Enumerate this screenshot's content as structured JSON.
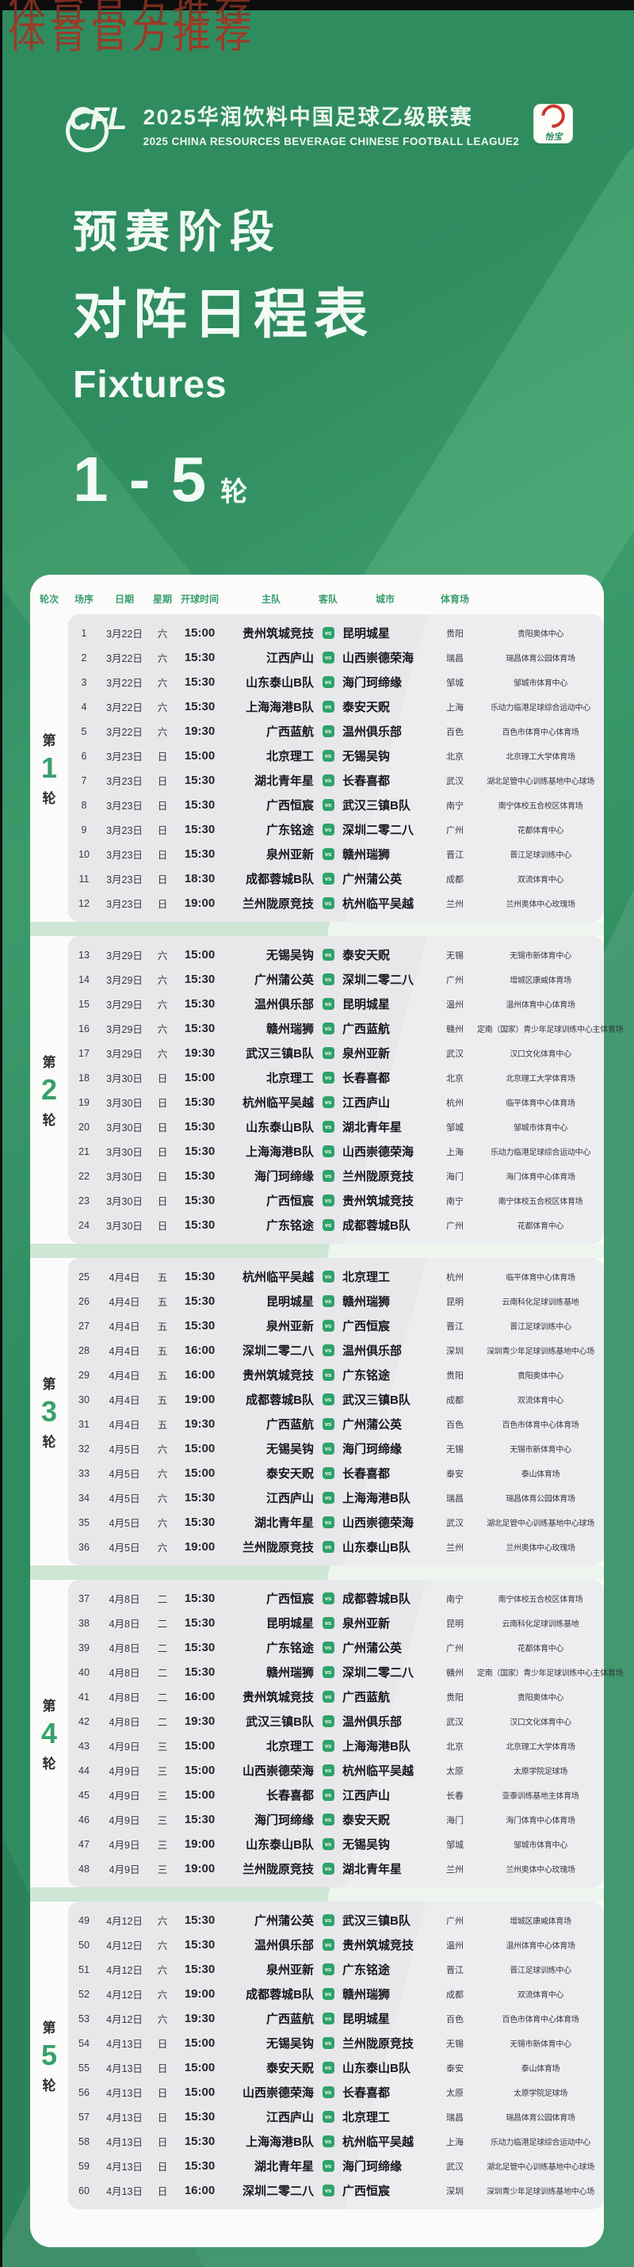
{
  "watermark": "体育官方推荐",
  "header": {
    "logo": "CFL",
    "title_cn": "2025华润饮料中国足球乙级联赛",
    "title_en": "2025 CHINA RESOURCES BEVERAGE CHINESE FOOTBALL LEAGUE2",
    "sponsor": "怡宝"
  },
  "hero": {
    "line1": "预赛阶段",
    "line2": "对阵日程表",
    "line3": "Fixtures",
    "range": "1 - 5",
    "range_unit": "轮"
  },
  "colors": {
    "background_green": "#2e8c5f",
    "card_white": "#fafbfa",
    "section_gray": "#e8e8eb",
    "accent_green": "#38a06c",
    "vs_badge_green": "#2fa26b",
    "watermark_red": "#9c3b28",
    "topbar_black": "#0d0d0d"
  },
  "table": {
    "columns": [
      "轮次",
      "场序",
      "日期",
      "星期",
      "开球时间",
      "主队",
      "客队",
      "城市",
      "体育场"
    ],
    "vs_label": "VS",
    "rounds": [
      {
        "label_prefix": "第",
        "number": "1",
        "label_suffix": "轮",
        "matches": [
          {
            "no": "1",
            "date": "3月22日",
            "week": "六",
            "time": "15:00",
            "home": "贵州筑城竞技",
            "away": "昆明城星",
            "city": "贵阳",
            "stadium": "贵阳奥体中心"
          },
          {
            "no": "2",
            "date": "3月22日",
            "week": "六",
            "time": "15:30",
            "home": "江西庐山",
            "away": "山西崇德荣海",
            "city": "瑞昌",
            "stadium": "瑞昌体育公园体育场"
          },
          {
            "no": "3",
            "date": "3月22日",
            "week": "六",
            "time": "15:30",
            "home": "山东泰山B队",
            "away": "海门珂缔缘",
            "city": "邹城",
            "stadium": "邹城市体育中心"
          },
          {
            "no": "4",
            "date": "3月22日",
            "week": "六",
            "time": "15:30",
            "home": "上海海港B队",
            "away": "泰安天贶",
            "city": "上海",
            "stadium": "乐动力临港足球综合运动中心"
          },
          {
            "no": "5",
            "date": "3月22日",
            "week": "六",
            "time": "19:30",
            "home": "广西蓝航",
            "away": "温州俱乐部",
            "city": "百色",
            "stadium": "百色市体育中心体育场"
          },
          {
            "no": "6",
            "date": "3月23日",
            "week": "日",
            "time": "15:00",
            "home": "北京理工",
            "away": "无锡吴钩",
            "city": "北京",
            "stadium": "北京理工大学体育场"
          },
          {
            "no": "7",
            "date": "3月23日",
            "week": "日",
            "time": "15:30",
            "home": "湖北青年星",
            "away": "长春喜都",
            "city": "武汉",
            "stadium": "湖北足管中心训练基地中心球场"
          },
          {
            "no": "8",
            "date": "3月23日",
            "week": "日",
            "time": "15:30",
            "home": "广西恒宸",
            "away": "武汉三镇B队",
            "city": "南宁",
            "stadium": "南宁体校五合校区体育场"
          },
          {
            "no": "9",
            "date": "3月23日",
            "week": "日",
            "time": "15:30",
            "home": "广东铭途",
            "away": "深圳二零二八",
            "city": "广州",
            "stadium": "花都体育中心"
          },
          {
            "no": "10",
            "date": "3月23日",
            "week": "日",
            "time": "15:30",
            "home": "泉州亚新",
            "away": "赣州瑞狮",
            "city": "晋江",
            "stadium": "晋江足球训练中心"
          },
          {
            "no": "11",
            "date": "3月23日",
            "week": "日",
            "time": "18:30",
            "home": "成都蓉城B队",
            "away": "广州蒲公英",
            "city": "成都",
            "stadium": "双流体育中心"
          },
          {
            "no": "12",
            "date": "3月23日",
            "week": "日",
            "time": "19:00",
            "home": "兰州陇原竞技",
            "away": "杭州临平吴越",
            "city": "兰州",
            "stadium": "兰州奥体中心玫瑰场"
          }
        ]
      },
      {
        "label_prefix": "第",
        "number": "2",
        "label_suffix": "轮",
        "matches": [
          {
            "no": "13",
            "date": "3月29日",
            "week": "六",
            "time": "15:00",
            "home": "无锡吴钩",
            "away": "泰安天贶",
            "city": "无锡",
            "stadium": "无锡市新体育中心"
          },
          {
            "no": "14",
            "date": "3月29日",
            "week": "六",
            "time": "15:30",
            "home": "广州蒲公英",
            "away": "深圳二零二八",
            "city": "广州",
            "stadium": "增城区康威体育场"
          },
          {
            "no": "15",
            "date": "3月29日",
            "week": "六",
            "time": "15:30",
            "home": "温州俱乐部",
            "away": "昆明城星",
            "city": "温州",
            "stadium": "温州体育中心体育场"
          },
          {
            "no": "16",
            "date": "3月29日",
            "week": "六",
            "time": "15:30",
            "home": "赣州瑞狮",
            "away": "广西蓝航",
            "city": "赣州",
            "stadium": "定南（国家）青少年足球训练中心主体育场"
          },
          {
            "no": "17",
            "date": "3月29日",
            "week": "六",
            "time": "19:30",
            "home": "武汉三镇B队",
            "away": "泉州亚新",
            "city": "武汉",
            "stadium": "汉口文化体育中心"
          },
          {
            "no": "18",
            "date": "3月30日",
            "week": "日",
            "time": "15:00",
            "home": "北京理工",
            "away": "长春喜都",
            "city": "北京",
            "stadium": "北京理工大学体育场"
          },
          {
            "no": "19",
            "date": "3月30日",
            "week": "日",
            "time": "15:30",
            "home": "杭州临平吴越",
            "away": "江西庐山",
            "city": "杭州",
            "stadium": "临平体育中心体育场"
          },
          {
            "no": "20",
            "date": "3月30日",
            "week": "日",
            "time": "15:30",
            "home": "山东泰山B队",
            "away": "湖北青年星",
            "city": "邹城",
            "stadium": "邹城市体育中心"
          },
          {
            "no": "21",
            "date": "3月30日",
            "week": "日",
            "time": "15:30",
            "home": "上海海港B队",
            "away": "山西崇德荣海",
            "city": "上海",
            "stadium": "乐动力临港足球综合运动中心"
          },
          {
            "no": "22",
            "date": "3月30日",
            "week": "日",
            "time": "15:30",
            "home": "海门珂缔缘",
            "away": "兰州陇原竞技",
            "city": "海门",
            "stadium": "海门体育中心体育场"
          },
          {
            "no": "23",
            "date": "3月30日",
            "week": "日",
            "time": "15:30",
            "home": "广西恒宸",
            "away": "贵州筑城竞技",
            "city": "南宁",
            "stadium": "南宁体校五合校区体育场"
          },
          {
            "no": "24",
            "date": "3月30日",
            "week": "日",
            "time": "15:30",
            "home": "广东铭途",
            "away": "成都蓉城B队",
            "city": "广州",
            "stadium": "花都体育中心"
          }
        ]
      },
      {
        "label_prefix": "第",
        "number": "3",
        "label_suffix": "轮",
        "matches": [
          {
            "no": "25",
            "date": "4月4日",
            "week": "五",
            "time": "15:30",
            "home": "杭州临平吴越",
            "away": "北京理工",
            "city": "杭州",
            "stadium": "临平体育中心体育场"
          },
          {
            "no": "26",
            "date": "4月4日",
            "week": "五",
            "time": "15:30",
            "home": "昆明城星",
            "away": "赣州瑞狮",
            "city": "昆明",
            "stadium": "云南科化足球训练基地"
          },
          {
            "no": "27",
            "date": "4月4日",
            "week": "五",
            "time": "15:30",
            "home": "泉州亚新",
            "away": "广西恒宸",
            "city": "晋江",
            "stadium": "晋江足球训练中心"
          },
          {
            "no": "28",
            "date": "4月4日",
            "week": "五",
            "time": "16:00",
            "home": "深圳二零二八",
            "away": "温州俱乐部",
            "city": "深圳",
            "stadium": "深圳青少年足球训练基地中心场"
          },
          {
            "no": "29",
            "date": "4月4日",
            "week": "五",
            "time": "16:00",
            "home": "贵州筑城竞技",
            "away": "广东铭途",
            "city": "贵阳",
            "stadium": "贵阳奥体中心"
          },
          {
            "no": "30",
            "date": "4月4日",
            "week": "五",
            "time": "19:00",
            "home": "成都蓉城B队",
            "away": "武汉三镇B队",
            "city": "成都",
            "stadium": "双流体育中心"
          },
          {
            "no": "31",
            "date": "4月4日",
            "week": "五",
            "time": "19:30",
            "home": "广西蓝航",
            "away": "广州蒲公英",
            "city": "百色",
            "stadium": "百色市体育中心体育场"
          },
          {
            "no": "32",
            "date": "4月5日",
            "week": "六",
            "time": "15:00",
            "home": "无锡吴钩",
            "away": "海门珂缔缘",
            "city": "无锡",
            "stadium": "无锡市新体育中心"
          },
          {
            "no": "33",
            "date": "4月5日",
            "week": "六",
            "time": "15:00",
            "home": "泰安天贶",
            "away": "长春喜都",
            "city": "泰安",
            "stadium": "泰山体育场"
          },
          {
            "no": "34",
            "date": "4月5日",
            "week": "六",
            "time": "15:30",
            "home": "江西庐山",
            "away": "上海海港B队",
            "city": "瑞昌",
            "stadium": "瑞昌体育公园体育场"
          },
          {
            "no": "35",
            "date": "4月5日",
            "week": "六",
            "time": "15:30",
            "home": "湖北青年星",
            "away": "山西崇德荣海",
            "city": "武汉",
            "stadium": "湖北足管中心训练基地中心球场"
          },
          {
            "no": "36",
            "date": "4月5日",
            "week": "六",
            "time": "19:00",
            "home": "兰州陇原竞技",
            "away": "山东泰山B队",
            "city": "兰州",
            "stadium": "兰州奥体中心玫瑰场"
          }
        ]
      },
      {
        "label_prefix": "第",
        "number": "4",
        "label_suffix": "轮",
        "matches": [
          {
            "no": "37",
            "date": "4月8日",
            "week": "二",
            "time": "15:30",
            "home": "广西恒宸",
            "away": "成都蓉城B队",
            "city": "南宁",
            "stadium": "南宁体校五合校区体育场"
          },
          {
            "no": "38",
            "date": "4月8日",
            "week": "二",
            "time": "15:30",
            "home": "昆明城星",
            "away": "泉州亚新",
            "city": "昆明",
            "stadium": "云南科化足球训练基地"
          },
          {
            "no": "39",
            "date": "4月8日",
            "week": "二",
            "time": "15:30",
            "home": "广东铭途",
            "away": "广州蒲公英",
            "city": "广州",
            "stadium": "花都体育中心"
          },
          {
            "no": "40",
            "date": "4月8日",
            "week": "二",
            "time": "15:30",
            "home": "赣州瑞狮",
            "away": "深圳二零二八",
            "city": "赣州",
            "stadium": "定南（国家）青少年足球训练中心主体育场"
          },
          {
            "no": "41",
            "date": "4月8日",
            "week": "二",
            "time": "16:00",
            "home": "贵州筑城竞技",
            "away": "广西蓝航",
            "city": "贵阳",
            "stadium": "贵阳奥体中心"
          },
          {
            "no": "42",
            "date": "4月8日",
            "week": "二",
            "time": "19:30",
            "home": "武汉三镇B队",
            "away": "温州俱乐部",
            "city": "武汉",
            "stadium": "汉口文化体育中心"
          },
          {
            "no": "43",
            "date": "4月9日",
            "week": "三",
            "time": "15:00",
            "home": "北京理工",
            "away": "上海海港B队",
            "city": "北京",
            "stadium": "北京理工大学体育场"
          },
          {
            "no": "44",
            "date": "4月9日",
            "week": "三",
            "time": "15:00",
            "home": "山西崇德荣海",
            "away": "杭州临平吴越",
            "city": "太原",
            "stadium": "太原学院足球场"
          },
          {
            "no": "45",
            "date": "4月9日",
            "week": "三",
            "time": "15:00",
            "home": "长春喜都",
            "away": "江西庐山",
            "city": "长春",
            "stadium": "亚泰训练基地主体育场"
          },
          {
            "no": "46",
            "date": "4月9日",
            "week": "三",
            "time": "15:30",
            "home": "海门珂缔缘",
            "away": "泰安天贶",
            "city": "海门",
            "stadium": "海门体育中心体育场"
          },
          {
            "no": "47",
            "date": "4月9日",
            "week": "三",
            "time": "19:00",
            "home": "山东泰山B队",
            "away": "无锡吴钩",
            "city": "邹城",
            "stadium": "邹城市体育中心"
          },
          {
            "no": "48",
            "date": "4月9日",
            "week": "三",
            "time": "19:00",
            "home": "兰州陇原竞技",
            "away": "湖北青年星",
            "city": "兰州",
            "stadium": "兰州奥体中心玫瑰场"
          }
        ]
      },
      {
        "label_prefix": "第",
        "number": "5",
        "label_suffix": "轮",
        "matches": [
          {
            "no": "49",
            "date": "4月12日",
            "week": "六",
            "time": "15:30",
            "home": "广州蒲公英",
            "away": "武汉三镇B队",
            "city": "广州",
            "stadium": "增城区康威体育场"
          },
          {
            "no": "50",
            "date": "4月12日",
            "week": "六",
            "time": "15:30",
            "home": "温州俱乐部",
            "away": "贵州筑城竞技",
            "city": "温州",
            "stadium": "温州体育中心体育场"
          },
          {
            "no": "51",
            "date": "4月12日",
            "week": "六",
            "time": "15:30",
            "home": "泉州亚新",
            "away": "广东铭途",
            "city": "晋江",
            "stadium": "晋江足球训练中心"
          },
          {
            "no": "52",
            "date": "4月12日",
            "week": "六",
            "time": "19:00",
            "home": "成都蓉城B队",
            "away": "赣州瑞狮",
            "city": "成都",
            "stadium": "双流体育中心"
          },
          {
            "no": "53",
            "date": "4月12日",
            "week": "六",
            "time": "19:30",
            "home": "广西蓝航",
            "away": "昆明城星",
            "city": "百色",
            "stadium": "百色市体育中心体育场"
          },
          {
            "no": "54",
            "date": "4月13日",
            "week": "日",
            "time": "15:00",
            "home": "无锡吴钩",
            "away": "兰州陇原竞技",
            "city": "无锡",
            "stadium": "无锡市新体育中心"
          },
          {
            "no": "55",
            "date": "4月13日",
            "week": "日",
            "time": "15:00",
            "home": "泰安天贶",
            "away": "山东泰山B队",
            "city": "泰安",
            "stadium": "泰山体育场"
          },
          {
            "no": "56",
            "date": "4月13日",
            "week": "日",
            "time": "15:00",
            "home": "山西崇德荣海",
            "away": "长春喜都",
            "city": "太原",
            "stadium": "太原学院足球场"
          },
          {
            "no": "57",
            "date": "4月13日",
            "week": "日",
            "time": "15:30",
            "home": "江西庐山",
            "away": "北京理工",
            "city": "瑞昌",
            "stadium": "瑞昌体育公园体育场"
          },
          {
            "no": "58",
            "date": "4月13日",
            "week": "日",
            "time": "15:30",
            "home": "上海海港B队",
            "away": "杭州临平吴越",
            "city": "上海",
            "stadium": "乐动力临港足球综合运动中心"
          },
          {
            "no": "59",
            "date": "4月13日",
            "week": "日",
            "time": "15:30",
            "home": "湖北青年星",
            "away": "海门珂缔缘",
            "city": "武汉",
            "stadium": "湖北足管中心训练基地中心球场"
          },
          {
            "no": "60",
            "date": "4月13日",
            "week": "日",
            "time": "16:00",
            "home": "深圳二零二八",
            "away": "广西恒宸",
            "city": "深圳",
            "stadium": "深圳青少年足球训练基地中心场"
          }
        ]
      }
    ]
  }
}
